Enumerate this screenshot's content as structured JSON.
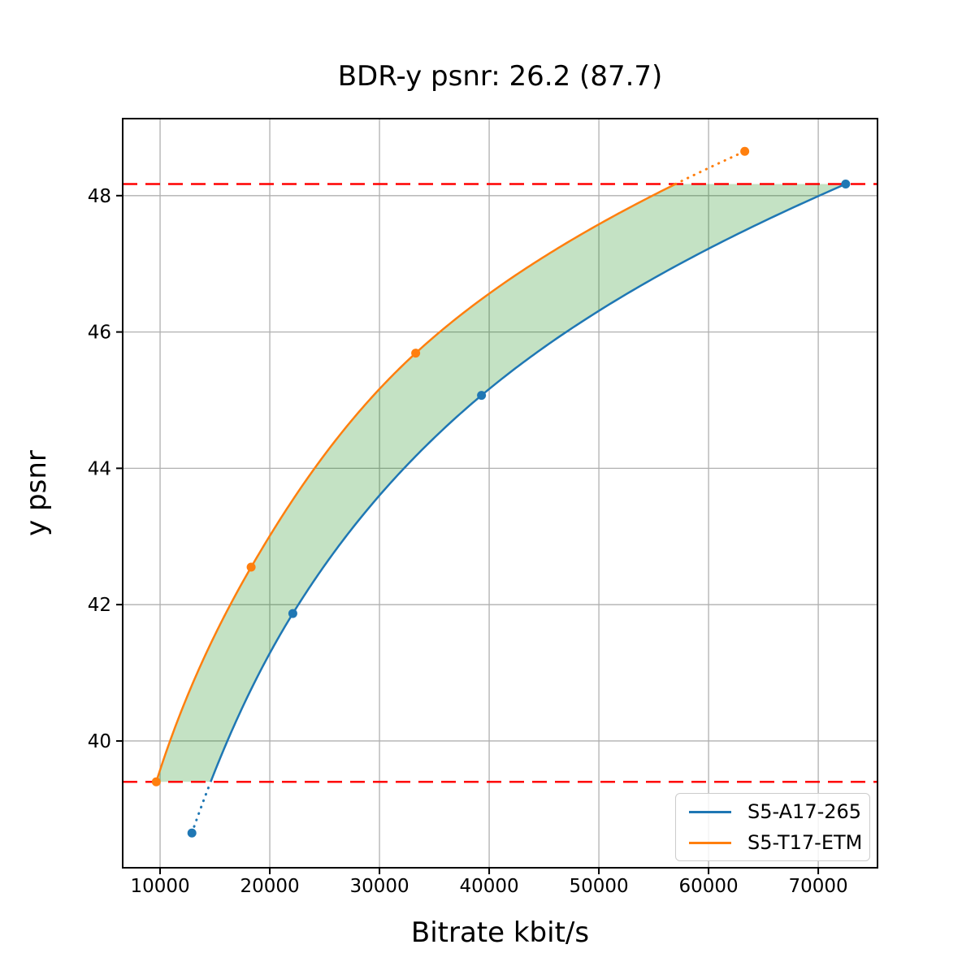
{
  "title": "BDR-y psnr: 26.2 (87.7)",
  "legend": {
    "position": "lower right",
    "items": [
      {
        "label": "S5-A17-265",
        "color": "#1f77b4"
      },
      {
        "label": "S5-T17-ETM",
        "color": "#ff7f0e"
      }
    ]
  },
  "chart_data": {
    "type": "line",
    "title": "BDR-y psnr: 26.2 (87.7)",
    "xlabel": "Bitrate kbit/s",
    "ylabel": "y psnr",
    "xlim": [
      6590,
      75400
    ],
    "ylim": [
      38.14,
      49.13
    ],
    "x_ticks": [
      10000,
      20000,
      30000,
      40000,
      50000,
      60000,
      70000
    ],
    "y_ticks": [
      40,
      42,
      44,
      46,
      48
    ],
    "grid": true,
    "grid_color": "#b0b0b0",
    "interpolation": "pchip-log-x",
    "series": [
      {
        "name": "S5-A17-265",
        "color": "#1f77b4",
        "marker": "circle",
        "x": [
          12900,
          22100,
          39300,
          72500
        ],
        "y": [
          38.65,
          41.87,
          45.07,
          48.17
        ]
      },
      {
        "name": "S5-T17-ETM",
        "color": "#ff7f0e",
        "marker": "circle",
        "x": [
          9650,
          18300,
          33300,
          63300
        ],
        "y": [
          39.4,
          42.55,
          45.69,
          48.65
        ]
      }
    ],
    "hlines": [
      {
        "y": 48.17,
        "color": "#ff0000",
        "style": "dashed"
      },
      {
        "y": 39.4,
        "color": "#ff0000",
        "style": "dashed"
      }
    ],
    "shaded_region": {
      "between": [
        "S5-T17-ETM",
        "S5-A17-265"
      ],
      "clip_y": [
        39.4,
        48.17
      ],
      "color": "#008000",
      "opacity": 0.23
    }
  }
}
